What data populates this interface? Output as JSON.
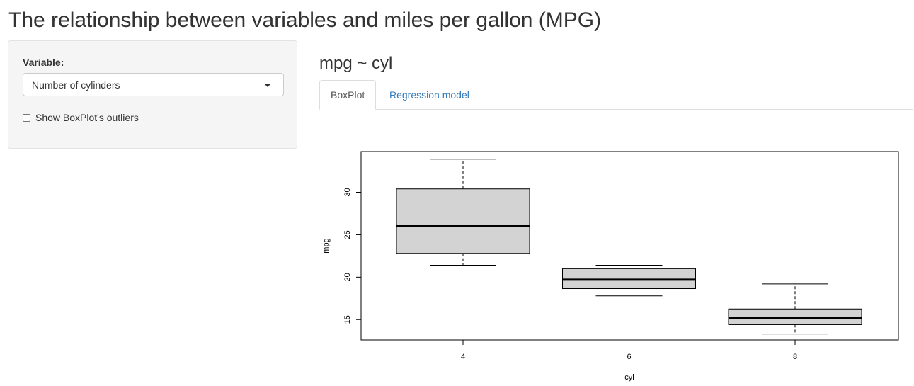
{
  "page": {
    "title": "The relationship between variables and miles per gallon (MPG)"
  },
  "sidebar": {
    "variable_label": "Variable:",
    "variable_select": {
      "selected": "Number of cylinders"
    },
    "outliers_checkbox": {
      "label": "Show BoxPlot's outliers",
      "checked": false
    }
  },
  "main": {
    "title": "mpg ~ cyl",
    "tabs": [
      {
        "label": "BoxPlot",
        "active": true
      },
      {
        "label": "Regression model",
        "active": false
      }
    ]
  },
  "colors": {
    "accent_link": "#337ab7",
    "box_fill": "#d3d3d3",
    "panel_bg": "#f5f5f5"
  },
  "chart_data": {
    "type": "boxplot",
    "xlabel": "cyl",
    "ylabel": "mpg",
    "categories": [
      "4",
      "6",
      "8"
    ],
    "y_ticks": [
      15,
      20,
      25,
      30
    ],
    "ylim": [
      12.6,
      34.8
    ],
    "boxes": [
      {
        "category": "4",
        "whisker_low": 21.4,
        "q1": 22.8,
        "median": 26.0,
        "q3": 30.4,
        "whisker_high": 33.9
      },
      {
        "category": "6",
        "whisker_low": 17.8,
        "q1": 18.65,
        "median": 19.7,
        "q3": 21.0,
        "whisker_high": 21.4
      },
      {
        "category": "8",
        "whisker_low": 13.3,
        "q1": 14.4,
        "median": 15.2,
        "q3": 16.25,
        "whisker_high": 19.2
      }
    ],
    "show_outliers": false,
    "grid": false
  }
}
